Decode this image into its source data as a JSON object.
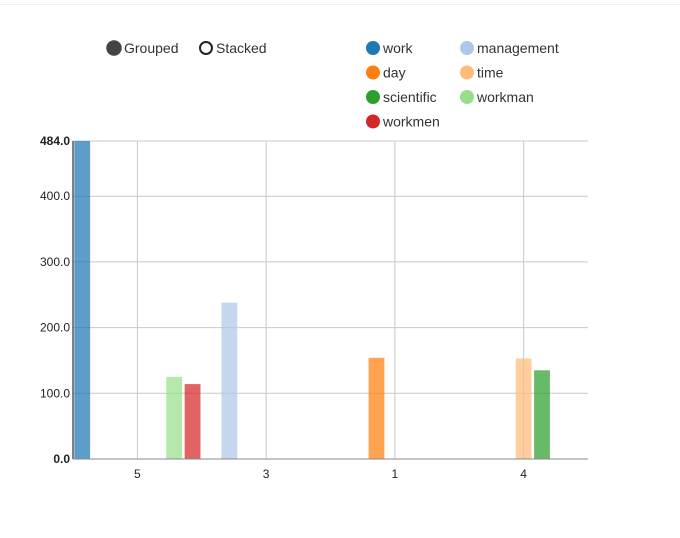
{
  "controls": {
    "grouped_label": "Grouped",
    "stacked_label": "Stacked",
    "selected": "grouped"
  },
  "chart_data": {
    "type": "bar",
    "mode": "grouped",
    "categories": [
      "5",
      "3",
      "1",
      "4"
    ],
    "ylim": [
      0,
      484
    ],
    "y_ticks": [
      "0.0",
      "100.0",
      "200.0",
      "300.0",
      "400.0",
      "484.0"
    ],
    "grid": true,
    "legend_position": "top-right",
    "series": [
      {
        "name": "work",
        "color": "#1f77b4",
        "values": [
          484,
          0,
          0,
          0
        ]
      },
      {
        "name": "management",
        "color": "#aec7e8",
        "values": [
          0,
          238,
          0,
          0
        ]
      },
      {
        "name": "day",
        "color": "#ff7f0e",
        "values": [
          0,
          0,
          154,
          0
        ]
      },
      {
        "name": "time",
        "color": "#ffbb78",
        "values": [
          0,
          0,
          0,
          153
        ]
      },
      {
        "name": "scientific",
        "color": "#2ca02c",
        "values": [
          0,
          0,
          0,
          135
        ]
      },
      {
        "name": "workman",
        "color": "#98df8a",
        "values": [
          125,
          0,
          0,
          0
        ]
      },
      {
        "name": "workmen",
        "color": "#d62728",
        "values": [
          114,
          0,
          0,
          0
        ]
      }
    ]
  }
}
